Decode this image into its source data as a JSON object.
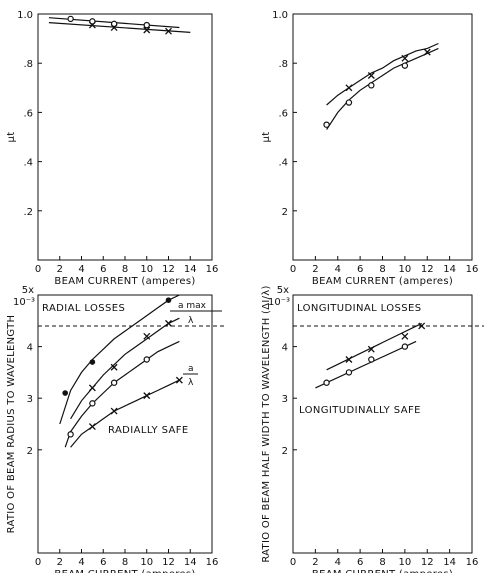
{
  "chart_data": [
    {
      "type": "line",
      "xlabel": "BEAM CURRENT (amperes)",
      "ylabel": "μt",
      "xlim": [
        0,
        16
      ],
      "ylim": [
        0,
        1.0
      ],
      "x_ticks": [
        "0",
        "2",
        "4",
        "6",
        "8",
        "10",
        "12",
        "14",
        "16"
      ],
      "y_ticks": [
        ".2",
        ".4",
        ".6",
        ".8",
        "1.0"
      ],
      "series": [
        {
          "marker": "circle",
          "x": [
            3,
            5,
            7,
            10
          ],
          "y": [
            0.98,
            0.97,
            0.96,
            0.955
          ],
          "curve_x": [
            1,
            13
          ],
          "curve_y": [
            0.985,
            0.945
          ]
        },
        {
          "marker": "x",
          "x": [
            5,
            7,
            10,
            12
          ],
          "y": [
            0.955,
            0.945,
            0.935,
            0.93
          ],
          "curve_x": [
            1,
            14
          ],
          "curve_y": [
            0.965,
            0.925
          ]
        }
      ]
    },
    {
      "type": "line",
      "xlabel": "BEAM CURRENT (amperes)",
      "ylabel": "μt",
      "xlim": [
        0,
        16
      ],
      "ylim": [
        0,
        1.0
      ],
      "x_ticks": [
        "0",
        "2",
        "4",
        "6",
        "8",
        "10",
        "12",
        "14",
        "16"
      ],
      "y_ticks": [
        "2",
        ".4",
        ".6",
        ".8",
        "1.0"
      ],
      "series": [
        {
          "marker": "circle",
          "x": [
            3,
            5,
            7,
            10
          ],
          "y": [
            0.55,
            0.64,
            0.71,
            0.79
          ],
          "curve_x": [
            3,
            4,
            5,
            6,
            7,
            8,
            9,
            10,
            11,
            12,
            13
          ],
          "curve_y": [
            0.53,
            0.6,
            0.65,
            0.69,
            0.72,
            0.75,
            0.78,
            0.8,
            0.82,
            0.84,
            0.86
          ]
        },
        {
          "marker": "x",
          "x": [
            5,
            7,
            10,
            12
          ],
          "y": [
            0.7,
            0.75,
            0.82,
            0.845
          ],
          "curve_x": [
            3,
            4,
            5,
            6,
            7,
            8,
            9,
            10,
            11,
            12,
            13
          ],
          "curve_y": [
            0.63,
            0.67,
            0.7,
            0.73,
            0.76,
            0.78,
            0.81,
            0.83,
            0.85,
            0.86,
            0.88
          ]
        }
      ]
    },
    {
      "type": "line",
      "xlabel": "BEAM CURRENT (amperes)",
      "ylabel": "RATIO OF BEAM RADIUS TO WAVELENGTH",
      "xlim": [
        0,
        16
      ],
      "ylim": [
        0,
        5
      ],
      "y_top_label": "5x",
      "y_exp_label": "10⁻³",
      "x_ticks": [
        "0",
        "2",
        "4",
        "6",
        "8",
        "10",
        "12",
        "14",
        "16"
      ],
      "y_ticks": [
        "2",
        "3",
        "4"
      ],
      "threshold": 4.4,
      "annotations": [
        "RADIAL LOSSES",
        "RADIALLY SAFE",
        "a max",
        "λ",
        "a",
        "λ"
      ],
      "series": [
        {
          "marker": "dot",
          "x": [
            2.5,
            5,
            12
          ],
          "y": [
            3.1,
            3.7,
            4.9
          ],
          "curve_x": [
            2,
            3,
            4,
            5,
            6,
            7,
            8,
            9,
            10,
            11,
            12,
            13
          ],
          "curve_y": [
            2.5,
            3.15,
            3.5,
            3.75,
            3.95,
            4.15,
            4.3,
            4.45,
            4.6,
            4.75,
            4.9,
            5.0
          ]
        },
        {
          "marker": "x",
          "x": [
            5,
            7,
            10,
            12
          ],
          "y": [
            3.2,
            3.6,
            4.2,
            4.45
          ],
          "curve_x": [
            3,
            4,
            5,
            6,
            7,
            8,
            9,
            10,
            11,
            12,
            13
          ],
          "curve_y": [
            2.6,
            2.95,
            3.2,
            3.45,
            3.65,
            3.85,
            4.0,
            4.15,
            4.3,
            4.45,
            4.55
          ]
        },
        {
          "marker": "circle",
          "x": [
            3,
            5,
            7,
            10
          ],
          "y": [
            2.3,
            2.9,
            3.3,
            3.75
          ],
          "curve_x": [
            2.5,
            3,
            4,
            5,
            6,
            7,
            8,
            9,
            10,
            11,
            12,
            13
          ],
          "curve_y": [
            2.05,
            2.35,
            2.65,
            2.9,
            3.1,
            3.3,
            3.45,
            3.6,
            3.75,
            3.9,
            4.0,
            4.1
          ]
        },
        {
          "marker": "x",
          "x": [
            5,
            7,
            10,
            13
          ],
          "y": [
            2.45,
            2.75,
            3.05,
            3.35
          ],
          "curve_x": [
            3,
            4,
            5,
            6,
            7,
            8,
            9,
            10,
            11,
            12,
            13
          ],
          "curve_y": [
            2.05,
            2.3,
            2.45,
            2.6,
            2.75,
            2.85,
            2.95,
            3.05,
            3.15,
            3.25,
            3.35
          ]
        }
      ]
    },
    {
      "type": "line",
      "xlabel": "BEAM CURRENT (amperes)",
      "ylabel": "RATIO OF BEAM HALF WIDTH TO WAVELENGTH (ΔI/λ)",
      "xlim": [
        0,
        16
      ],
      "ylim": [
        0,
        5
      ],
      "y_top_label": "5x",
      "y_exp_label": "10⁻³",
      "x_ticks": [
        "0",
        "2",
        "4",
        "6",
        "8",
        "10",
        "12",
        "14",
        "16"
      ],
      "y_ticks": [
        "2",
        "3",
        "4"
      ],
      "threshold": 4.4,
      "annotations": [
        "LONGITUDINAL LOSSES",
        "LONGITUDINALLY SAFE"
      ],
      "series": [
        {
          "marker": "x",
          "x": [
            5,
            7,
            10,
            11.5
          ],
          "y": [
            3.75,
            3.95,
            4.2,
            4.4
          ],
          "curve_x": [
            3,
            11.5
          ],
          "curve_y": [
            3.55,
            4.45
          ]
        },
        {
          "marker": "circle",
          "x": [
            3,
            5,
            7,
            10
          ],
          "y": [
            3.3,
            3.5,
            3.75,
            4.0
          ],
          "curve_x": [
            2,
            11
          ],
          "curve_y": [
            3.2,
            4.1
          ]
        }
      ]
    }
  ]
}
